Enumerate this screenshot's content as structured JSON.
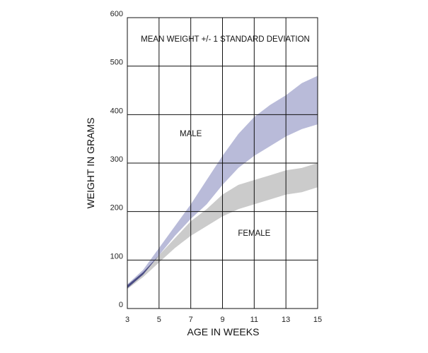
{
  "chart_data": {
    "type": "area",
    "title": "MEAN WEIGHT +/- 1 STANDARD DEVIATION",
    "xlabel": "AGE IN WEEKS",
    "ylabel": "WEIGHT IN GRAMS",
    "xlim": [
      3,
      15
    ],
    "ylim": [
      0,
      600
    ],
    "xticks": [
      3,
      5,
      7,
      9,
      11,
      13,
      15
    ],
    "yticks": [
      0,
      100,
      200,
      300,
      400,
      500,
      600
    ],
    "grid": true,
    "series": [
      {
        "name": "MALE",
        "color": "#b9bbd9",
        "x": [
          3,
          4,
          5,
          6,
          7,
          8,
          9,
          10,
          11,
          12,
          13,
          14,
          15
        ],
        "upper": [
          50,
          80,
          125,
          170,
          215,
          265,
          315,
          360,
          395,
          420,
          440,
          465,
          480
        ],
        "lower": [
          42,
          70,
          110,
          150,
          185,
          215,
          255,
          290,
          315,
          335,
          355,
          370,
          380
        ]
      },
      {
        "name": "FEMALE",
        "color": "#cbcbcb",
        "x": [
          3,
          4,
          5,
          6,
          7,
          8,
          9,
          10,
          11,
          12,
          13,
          14,
          15
        ],
        "upper": [
          48,
          75,
          110,
          145,
          180,
          205,
          235,
          255,
          265,
          275,
          285,
          290,
          300
        ],
        "lower": [
          40,
          65,
          95,
          125,
          150,
          170,
          190,
          205,
          215,
          225,
          235,
          240,
          250
        ]
      }
    ],
    "overlap_color": "#4b4d85",
    "annotations": [
      {
        "text": "MALE",
        "x": 7,
        "y": 355
      },
      {
        "text": "FEMALE",
        "x": 11,
        "y": 150
      }
    ]
  }
}
